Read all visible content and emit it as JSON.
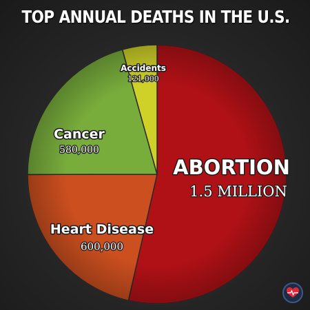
{
  "title": "TOP ANNUAL DEATHS IN THE U.S.",
  "chart_data": {
    "type": "pie",
    "title": "TOP ANNUAL DEATHS IN THE U.S.",
    "slices": [
      {
        "label": "ABORTION",
        "value_label": "1.5 MILLION",
        "value": 1500000,
        "color": "#b01116"
      },
      {
        "label": "Heart Disease",
        "value_label": "600,000",
        "value": 600000,
        "color": "#cc4f1f"
      },
      {
        "label": "Cancer",
        "value_label": "580,000",
        "value": 580000,
        "color": "#78ad3c"
      },
      {
        "label": "Accidents",
        "value_label": "121,000",
        "value": 121000,
        "color": "#cfd128"
      }
    ]
  },
  "badge_icon": "heart-icon"
}
